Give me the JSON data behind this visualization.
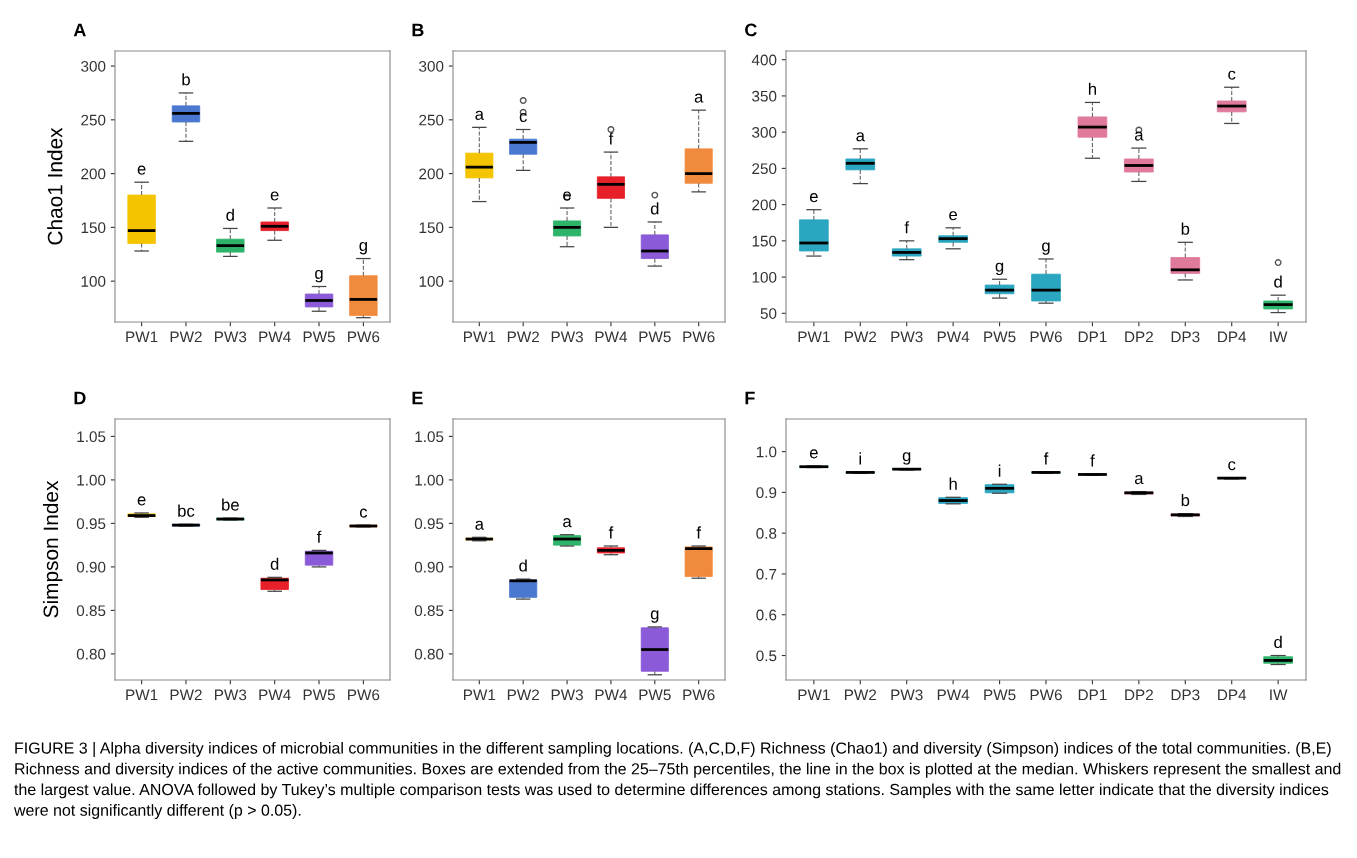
{
  "chart_data": [
    {
      "type": "box",
      "title": "A",
      "ylabel": "Chao1 Index",
      "categories": [
        "PW1",
        "PW2",
        "PW3",
        "PW4",
        "PW5",
        "PW6"
      ],
      "colors": [
        "#f5c400",
        "#4a78d0",
        "#2db46a",
        "#e8202a",
        "#8a5ad8",
        "#f08a3c"
      ],
      "ylim": [
        62,
        314
      ],
      "yticks": [
        100,
        150,
        200,
        250,
        300
      ],
      "boxes": [
        {
          "low": 128,
          "q1": 135,
          "median": 147,
          "q3": 180,
          "high": 192
        },
        {
          "low": 230,
          "q1": 248,
          "median": 256,
          "q3": 263,
          "high": 275
        },
        {
          "low": 123,
          "q1": 127,
          "median": 133,
          "q3": 139,
          "high": 149
        },
        {
          "low": 138,
          "q1": 147,
          "median": 151,
          "q3": 155,
          "high": 168
        },
        {
          "low": 72,
          "q1": 76,
          "median": 82,
          "q3": 88,
          "high": 95
        },
        {
          "low": 66,
          "q1": 68,
          "median": 83,
          "q3": 105,
          "high": 121
        }
      ],
      "annotations": [
        {
          "text": "e",
          "x": "PW1",
          "y": 192
        },
        {
          "text": "b",
          "x": "PW2",
          "y": 275
        },
        {
          "text": "d",
          "x": "PW3",
          "y": 149
        },
        {
          "text": "e",
          "x": "PW4",
          "y": 168
        },
        {
          "text": "g",
          "x": "PW5",
          "y": 95
        },
        {
          "text": "g",
          "x": "PW6",
          "y": 121
        },
        "FIGURE 3 | Alpha diversity indices of microbial communities in the different sampling locations. (A,C,D,F) Richness (Chao1) and diversity (Simpson) indices of the total communities. (B,E) Richness and diversity indices of the active communities. Boxes are extended from the 25–75th percentiles, the line in the box is plotted at the median. Whiskers represent the smallest and the largest value. ANOVA followed by Tukey’s multiple comparison tests was used to determine differences among stations. Samples with the same letter indicate that the diversity indices were not significantly different (p > 0.05)."
      ]
    },
    {
      "type": "box",
      "title": "B",
      "categories": [
        "PW1",
        "PW2",
        "PW3",
        "PW4",
        "PW5",
        "PW6"
      ],
      "colors": [
        "#f5c400",
        "#4a78d0",
        "#2db46a",
        "#e8202a",
        "#8a5ad8",
        "#f08a3c"
      ],
      "ylim": [
        62,
        314
      ],
      "yticks": [
        100,
        150,
        200,
        250,
        300
      ],
      "boxes": [
        {
          "low": 174,
          "q1": 196,
          "median": 206,
          "q3": 219,
          "high": 243
        },
        {
          "low": 203,
          "q1": 218,
          "median": 229,
          "q3": 232,
          "high": 241,
          "outliers": [
            257,
            268
          ]
        },
        {
          "low": 132,
          "q1": 142,
          "median": 150,
          "q3": 156,
          "high": 168,
          "outliers": [
            178
          ]
        },
        {
          "low": 150,
          "q1": 177,
          "median": 190,
          "q3": 197,
          "high": 220,
          "outliers": [
            241
          ]
        },
        {
          "low": 114,
          "q1": 121,
          "median": 128,
          "q3": 143,
          "high": 155,
          "outliers": [
            180
          ]
        },
        {
          "low": 183,
          "q1": 191,
          "median": 200,
          "q3": 223,
          "high": 259
        }
      ],
      "annotations": [
        {
          "text": "a",
          "x": "PW1",
          "y": 243
        },
        {
          "text": "c",
          "x": "PW2",
          "y": 241
        },
        {
          "text": "e",
          "x": "PW3",
          "y": 168
        },
        {
          "text": "f",
          "x": "PW4",
          "y": 220
        },
        {
          "text": "d",
          "x": "PW5",
          "y": 155
        },
        {
          "text": "a",
          "x": "PW6",
          "y": 259
        }
      ]
    },
    {
      "type": "box",
      "title": "C",
      "categories": [
        "PW1",
        "PW2",
        "PW3",
        "PW4",
        "PW5",
        "PW6",
        "DP1",
        "DP2",
        "DP3",
        "DP4",
        "IW"
      ],
      "colors": [
        "#2aa6c0",
        "#2aa6c0",
        "#2aa6c0",
        "#2aa6c0",
        "#2aa6c0",
        "#2aa6c0",
        "#e07a9a",
        "#e07a9a",
        "#e07a9a",
        "#e07a9a",
        "#2db46a"
      ],
      "ylim": [
        38,
        412
      ],
      "yticks": [
        50,
        100,
        150,
        200,
        250,
        300,
        350,
        400
      ],
      "boxes": [
        {
          "low": 129,
          "q1": 136,
          "median": 147,
          "q3": 179,
          "high": 193
        },
        {
          "low": 229,
          "q1": 248,
          "median": 257,
          "q3": 263,
          "high": 277
        },
        {
          "low": 124,
          "q1": 129,
          "median": 134,
          "q3": 139,
          "high": 150
        },
        {
          "low": 139,
          "q1": 148,
          "median": 153,
          "q3": 157,
          "high": 168
        },
        {
          "low": 71,
          "q1": 77,
          "median": 82,
          "q3": 89,
          "high": 97
        },
        {
          "low": 64,
          "q1": 67,
          "median": 82,
          "q3": 104,
          "high": 125
        },
        {
          "low": 264,
          "q1": 293,
          "median": 307,
          "q3": 321,
          "high": 341
        },
        {
          "low": 232,
          "q1": 245,
          "median": 254,
          "q3": 263,
          "high": 278,
          "outliers": [
            303
          ]
        },
        {
          "low": 96,
          "q1": 105,
          "median": 110,
          "q3": 127,
          "high": 148
        },
        {
          "low": 312,
          "q1": 328,
          "median": 336,
          "q3": 343,
          "high": 362
        },
        {
          "low": 51,
          "q1": 56,
          "median": 62,
          "q3": 67,
          "high": 75,
          "outliers": [
            120
          ]
        }
      ],
      "annotations": [
        {
          "text": "e",
          "x": "PW1",
          "y": 193
        },
        {
          "text": "a",
          "x": "PW2",
          "y": 277
        },
        {
          "text": "f",
          "x": "PW3",
          "y": 150
        },
        {
          "text": "e",
          "x": "PW4",
          "y": 168
        },
        {
          "text": "g",
          "x": "PW5",
          "y": 97
        },
        {
          "text": "g",
          "x": "PW6",
          "y": 125
        },
        {
          "text": "h",
          "x": "DP1",
          "y": 341
        },
        {
          "text": "a",
          "x": "DP2",
          "y": 278
        },
        {
          "text": "b",
          "x": "DP3",
          "y": 148
        },
        {
          "text": "c",
          "x": "DP4",
          "y": 362
        },
        {
          "text": "d",
          "x": "IW",
          "y": 75
        }
      ]
    },
    {
      "type": "box",
      "title": "D",
      "ylabel": "Simpson Index",
      "categories": [
        "PW1",
        "PW2",
        "PW3",
        "PW4",
        "PW5",
        "PW6"
      ],
      "colors": [
        "#f5c400",
        "#4a78d0",
        "#2db46a",
        "#e8202a",
        "#8a5ad8",
        "#f08a3c"
      ],
      "ylim": [
        0.77,
        1.07
      ],
      "yticks": [
        {
          "value": 0.8,
          "label": "0.80"
        },
        0.85,
        {
          "value": 0.9,
          "label": "0.90"
        },
        0.95,
        {
          "value": 1.0,
          "label": "1.00"
        },
        1.05
      ],
      "boxes": [
        {
          "low": 0.957,
          "q1": 0.958,
          "median": 0.959,
          "q3": 0.961,
          "high": 0.962
        },
        {
          "low": 0.947,
          "q1": 0.947,
          "median": 0.948,
          "q3": 0.949,
          "high": 0.949
        },
        {
          "low": 0.954,
          "q1": 0.954,
          "median": 0.955,
          "q3": 0.956,
          "high": 0.956
        },
        {
          "low": 0.872,
          "q1": 0.874,
          "median": 0.885,
          "q3": 0.887,
          "high": 0.888
        },
        {
          "low": 0.9,
          "q1": 0.902,
          "median": 0.916,
          "q3": 0.918,
          "high": 0.919
        },
        {
          "low": 0.946,
          "q1": 0.946,
          "median": 0.947,
          "q3": 0.948,
          "high": 0.948
        }
      ],
      "annotations": [
        {
          "text": "e",
          "x": "PW1",
          "y": 0.962
        },
        {
          "text": "bc",
          "x": "PW2",
          "y": 0.949
        },
        {
          "text": "be",
          "x": "PW3",
          "y": 0.956
        },
        {
          "text": "d",
          "x": "PW4",
          "y": 0.888
        },
        {
          "text": "f",
          "x": "PW5",
          "y": 0.919
        },
        {
          "text": "c",
          "x": "PW6",
          "y": 0.948
        }
      ]
    },
    {
      "type": "box",
      "title": "E",
      "categories": [
        "PW1",
        "PW2",
        "PW3",
        "PW4",
        "PW5",
        "PW6"
      ],
      "colors": [
        "#f5c400",
        "#4a78d0",
        "#2db46a",
        "#e8202a",
        "#8a5ad8",
        "#f08a3c"
      ],
      "ylim": [
        0.77,
        1.07
      ],
      "yticks": [
        {
          "value": 0.8,
          "label": "0.80"
        },
        0.85,
        {
          "value": 0.9,
          "label": "0.90"
        },
        0.95,
        {
          "value": 1.0,
          "label": "1.00"
        },
        1.05
      ],
      "boxes": [
        {
          "low": 0.93,
          "q1": 0.931,
          "median": 0.932,
          "q3": 0.933,
          "high": 0.934
        },
        {
          "low": 0.863,
          "q1": 0.865,
          "median": 0.884,
          "q3": 0.885,
          "high": 0.886
        },
        {
          "low": 0.924,
          "q1": 0.925,
          "median": 0.932,
          "q3": 0.936,
          "high": 0.937
        },
        {
          "low": 0.914,
          "q1": 0.916,
          "median": 0.919,
          "q3": 0.922,
          "high": 0.924
        },
        {
          "low": 0.776,
          "q1": 0.78,
          "median": 0.805,
          "q3": 0.83,
          "high": 0.831
        },
        {
          "low": 0.887,
          "q1": 0.889,
          "median": 0.921,
          "q3": 0.923,
          "high": 0.924
        }
      ],
      "annotations": [
        {
          "text": "a",
          "x": "PW1",
          "y": 0.934
        },
        {
          "text": "d",
          "x": "PW2",
          "y": 0.886
        },
        {
          "text": "a",
          "x": "PW3",
          "y": 0.937
        },
        {
          "text": "f",
          "x": "PW4",
          "y": 0.924
        },
        {
          "text": "g",
          "x": "PW5",
          "y": 0.831
        },
        {
          "text": "f",
          "x": "PW6",
          "y": 0.924
        }
      ]
    },
    {
      "type": "box",
      "title": "F",
      "categories": [
        "PW1",
        "PW2",
        "PW3",
        "PW4",
        "PW5",
        "PW6",
        "DP1",
        "DP2",
        "DP3",
        "DP4",
        "IW"
      ],
      "colors": [
        "#2aa6c0",
        "#2aa6c0",
        "#2aa6c0",
        "#2aa6c0",
        "#2aa6c0",
        "#2aa6c0",
        "#e07a9a",
        "#e07a9a",
        "#e07a9a",
        "#e07a9a",
        "#2db46a"
      ],
      "ylim": [
        0.44,
        1.08
      ],
      "yticks": [
        0.5,
        0.6,
        0.7,
        0.8,
        0.9,
        {
          "value": 1.0,
          "label": "1.0"
        }
      ],
      "boxes": [
        {
          "low": 0.961,
          "q1": 0.962,
          "median": 0.963,
          "q3": 0.964,
          "high": 0.965
        },
        {
          "low": 0.947,
          "q1": 0.948,
          "median": 0.949,
          "q3": 0.95,
          "high": 0.95
        },
        {
          "low": 0.955,
          "q1": 0.956,
          "median": 0.957,
          "q3": 0.958,
          "high": 0.958
        },
        {
          "low": 0.872,
          "q1": 0.873,
          "median": 0.88,
          "q3": 0.887,
          "high": 0.888
        },
        {
          "low": 0.898,
          "q1": 0.899,
          "median": 0.91,
          "q3": 0.919,
          "high": 0.92
        },
        {
          "low": 0.947,
          "q1": 0.948,
          "median": 0.949,
          "q3": 0.95,
          "high": 0.95
        },
        {
          "low": 0.942,
          "q1": 0.943,
          "median": 0.944,
          "q3": 0.945,
          "high": 0.945
        },
        {
          "low": 0.895,
          "q1": 0.896,
          "median": 0.899,
          "q3": 0.901,
          "high": 0.902
        },
        {
          "low": 0.841,
          "q1": 0.842,
          "median": 0.845,
          "q3": 0.847,
          "high": 0.848
        },
        {
          "low": 0.933,
          "q1": 0.934,
          "median": 0.935,
          "q3": 0.936,
          "high": 0.936
        },
        {
          "low": 0.478,
          "q1": 0.481,
          "median": 0.488,
          "q3": 0.497,
          "high": 0.5
        }
      ],
      "annotations": [
        {
          "text": "e",
          "x": "PW1",
          "y": 0.965
        },
        {
          "text": "i",
          "x": "PW2",
          "y": 0.95
        },
        {
          "text": "g",
          "x": "PW3",
          "y": 0.958
        },
        {
          "text": "h",
          "x": "PW4",
          "y": 0.888
        },
        {
          "text": "i",
          "x": "PW5",
          "y": 0.92
        },
        {
          "text": "f",
          "x": "PW6",
          "y": 0.95
        },
        {
          "text": "f",
          "x": "DP1",
          "y": 0.945
        },
        {
          "text": "a",
          "x": "DP2",
          "y": 0.902
        },
        {
          "text": "b",
          "x": "DP3",
          "y": 0.848
        },
        {
          "text": "c",
          "x": "DP4",
          "y": 0.936
        },
        {
          "text": "d",
          "x": "IW",
          "y": 0.5
        }
      ]
    }
  ]
}
